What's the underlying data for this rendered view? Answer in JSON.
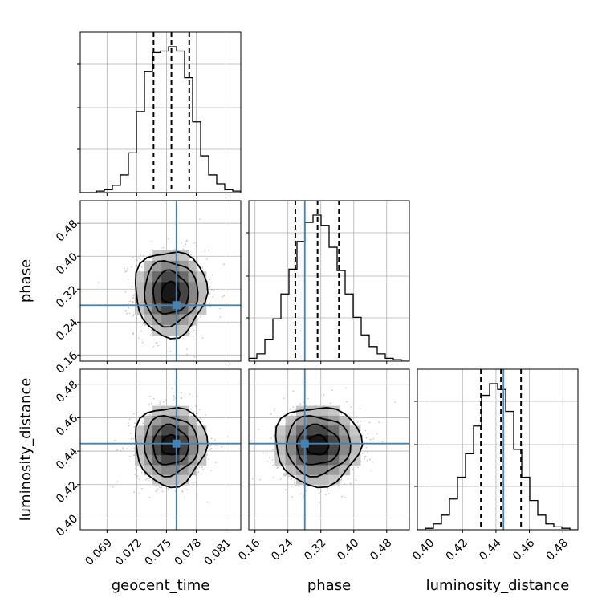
{
  "colors": {
    "truth": "#4682b4",
    "hist": "#000000",
    "grid": "#b0b0b0"
  },
  "chart_data": {
    "type": "corner",
    "parameters": [
      {
        "name": "geocent_time",
        "label": "geocent_time",
        "range": [
          0.0663,
          0.0825
        ],
        "ticks": [
          0.069,
          0.072,
          0.075,
          0.078,
          0.081
        ],
        "tick_labels": [
          "0.069",
          "0.072",
          "0.075",
          "0.078",
          "0.081"
        ],
        "truth": 0.076,
        "quantiles": [
          0.0737,
          0.0755,
          0.0773
        ]
      },
      {
        "name": "phase",
        "label": "phase",
        "range": [
          0.145,
          0.535
        ],
        "ticks": [
          0.16,
          0.24,
          0.32,
          0.4,
          0.48
        ],
        "tick_labels": [
          "0.16",
          "0.24",
          "0.32",
          "0.40",
          "0.48"
        ],
        "truth": 0.281,
        "quantiles": [
          0.258,
          0.312,
          0.364
        ]
      },
      {
        "name": "luminosity_distance",
        "label": "luminosity_distance",
        "range": [
          0.393,
          0.489
        ],
        "ticks": [
          0.4,
          0.42,
          0.44,
          0.46,
          0.48
        ],
        "tick_labels": [
          "0.40",
          "0.42",
          "0.44",
          "0.46",
          "0.48"
        ],
        "truth": 0.4445,
        "quantiles": [
          0.431,
          0.443,
          0.455
        ]
      }
    ],
    "histograms": [
      {
        "param": "geocent_time",
        "bin_start": 0.0663,
        "bin_width": 0.00081,
        "counts": [
          0,
          0,
          0.01,
          0.02,
          0.05,
          0.12,
          0.27,
          0.55,
          0.82,
          0.95,
          0.96,
          0.99,
          0.96,
          0.78,
          0.48,
          0.25,
          0.12,
          0.06,
          0.02,
          0.01
        ]
      },
      {
        "param": "phase",
        "bin_start": 0.145,
        "bin_width": 0.0195,
        "counts": [
          0.02,
          0.05,
          0.15,
          0.29,
          0.46,
          0.63,
          0.82,
          0.95,
          1.0,
          0.93,
          0.78,
          0.62,
          0.46,
          0.3,
          0.18,
          0.1,
          0.05,
          0.02,
          0.01,
          0
        ]
      },
      {
        "param": "luminosity_distance",
        "bin_start": 0.393,
        "bin_width": 0.0048,
        "counts": [
          0,
          0.01,
          0.04,
          0.1,
          0.21,
          0.36,
          0.52,
          0.71,
          0.92,
          1.0,
          0.96,
          0.81,
          0.55,
          0.36,
          0.2,
          0.1,
          0.04,
          0.02,
          0.01,
          0
        ]
      }
    ],
    "pairs": [
      {
        "x": "geocent_time",
        "y": "phase",
        "center": [
          0.0754,
          0.311
        ],
        "spread": [
          0.0018,
          0.052
        ]
      },
      {
        "x": "geocent_time",
        "y": "luminosity_distance",
        "center": [
          0.0754,
          0.4435
        ],
        "spread": [
          0.0018,
          0.0118
        ]
      },
      {
        "x": "phase",
        "y": "luminosity_distance",
        "center": [
          0.312,
          0.4435
        ],
        "spread": [
          0.052,
          0.0118
        ]
      }
    ],
    "grid": true
  }
}
